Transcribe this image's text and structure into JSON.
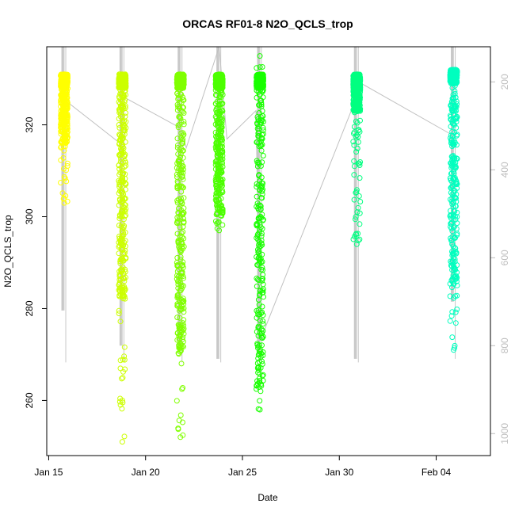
{
  "chart_data": {
    "type": "scatter",
    "title": "ORCAS RF01-8 N2O_QCLS_trop",
    "xlabel": "Date",
    "ylabel": "N2O_QCLS_trop",
    "x_ticks": [
      "Jan 15",
      "Jan 20",
      "Jan 25",
      "Jan 30",
      "Feb 04"
    ],
    "x_tick_days": [
      15,
      20,
      25,
      30,
      35
    ],
    "xlim": [
      14.9,
      37.8
    ],
    "y_ticks": [
      260,
      280,
      300,
      320
    ],
    "ylim": [
      248,
      337
    ],
    "right_axis_ticks": [
      200,
      400,
      600,
      800,
      1000
    ],
    "right_axis_lim": [
      1050,
      120
    ],
    "right_axis_color": "#bdbdbd",
    "series": [
      {
        "day": 15.8,
        "color": "#ffff00",
        "ymin": 303,
        "ymax": 331,
        "dense_min": 316,
        "dense_max": 331,
        "press_top": 120,
        "press_bot": 838,
        "press_dense_bot": 720
      },
      {
        "day": 18.8,
        "color": "#ccff00",
        "ymin": 251,
        "ymax": 331,
        "dense_min": 282,
        "dense_max": 331,
        "press_top": 120,
        "press_bot": 838,
        "press_dense_bot": 800
      },
      {
        "day": 21.8,
        "color": "#80ff00",
        "ymin": 252,
        "ymax": 331,
        "dense_min": 270,
        "dense_max": 331,
        "press_top": 120,
        "press_bot": 838,
        "press_dense_bot": 800
      },
      {
        "day": 23.8,
        "color": "#4cff00",
        "ymin": 297,
        "ymax": 331,
        "dense_min": 300,
        "dense_max": 331,
        "press_top": 120,
        "press_bot": 838,
        "press_dense_bot": 830
      },
      {
        "day": 25.9,
        "color": "#19ff00",
        "ymin": 258,
        "ymax": 335,
        "dense_min": 262,
        "dense_max": 331,
        "press_top": 120,
        "press_bot": 838,
        "press_dense_bot": 820
      },
      {
        "day": 30.9,
        "color": "#00ff80",
        "ymin": 294,
        "ymax": 331,
        "dense_min": 323,
        "dense_max": 331,
        "press_top": 120,
        "press_bot": 838,
        "press_dense_bot": 830
      },
      {
        "day": 35.9,
        "color": "#00ffbf",
        "ymin": 271,
        "ymax": 332,
        "dense_min": 285,
        "dense_max": 332,
        "press_top": 120,
        "press_bot": 830,
        "press_dense_bot": 700
      }
    ],
    "connector_lines": [
      {
        "x": [
          15.8,
          18.7,
          18.9,
          21.8,
          22.1,
          23.8,
          24.2,
          25.7,
          25.9,
          30.8,
          31.0,
          35.8
        ],
        "y_pressure": [
          240,
          340,
          235,
          305,
          350,
          120,
          330,
          265,
          790,
          245,
          200,
          320
        ],
        "color": "#c0c0c0"
      }
    ],
    "grid": false,
    "legend": "none"
  }
}
